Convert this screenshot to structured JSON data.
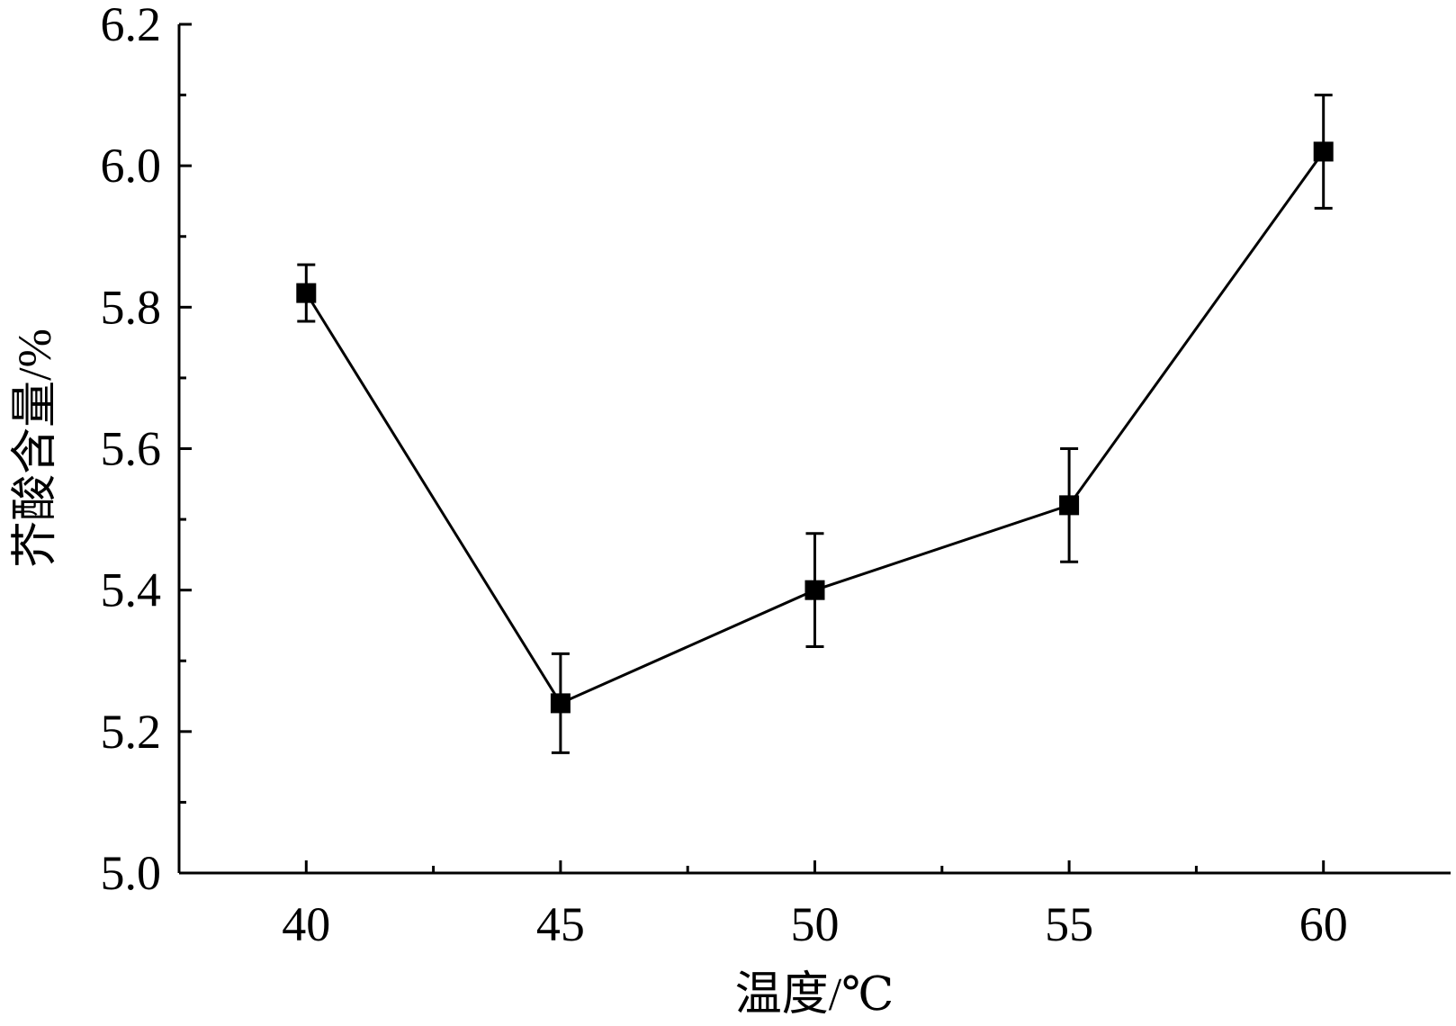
{
  "chart_data": {
    "type": "line",
    "title": "",
    "xlabel": "温度/℃",
    "ylabel": "芥酸含量/%",
    "x": [
      40,
      45,
      50,
      55,
      60
    ],
    "series": [
      {
        "values": [
          5.82,
          5.24,
          5.4,
          5.52,
          6.02
        ],
        "error": [
          0.04,
          0.07,
          0.08,
          0.08,
          0.08
        ]
      }
    ],
    "xlim": [
      37.5,
      62.5
    ],
    "ylim": [
      5.0,
      6.2
    ],
    "xticks": [
      "40",
      "45",
      "50",
      "55",
      "60"
    ],
    "yticks": [
      "5.0",
      "5.2",
      "5.4",
      "5.6",
      "5.8",
      "6.0",
      "6.2"
    ],
    "marker": "square",
    "grid": false,
    "legend": "none",
    "colors": {
      "line": "#000000",
      "marker": "#000000",
      "axis": "#000000"
    }
  }
}
